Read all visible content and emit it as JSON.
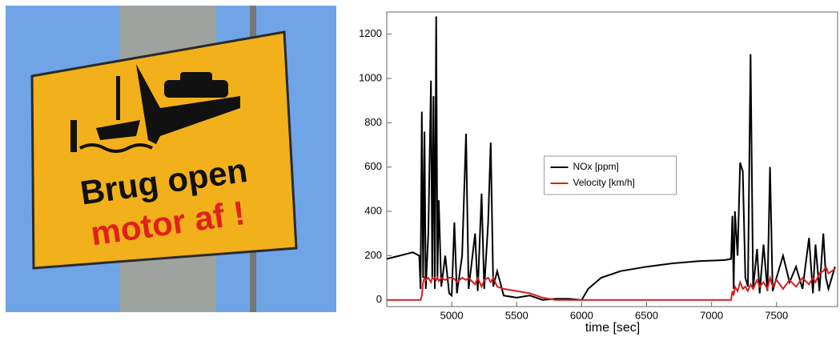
{
  "photo": {
    "sign_lines": [
      "Brug open",
      "motor af !"
    ]
  },
  "chart_data": {
    "type": "line",
    "xlabel": "time [sec]",
    "x": [
      4500,
      4600,
      4700,
      4750,
      4760,
      4770,
      4780,
      4790,
      4800,
      4820,
      4840,
      4850,
      4860,
      4870,
      4880,
      4890,
      4900,
      4920,
      4950,
      4980,
      5000,
      5020,
      5040,
      5080,
      5110,
      5130,
      5180,
      5200,
      5230,
      5250,
      5280,
      5300,
      5320,
      5350,
      5400,
      5500,
      5600,
      5700,
      5800,
      5900,
      6000,
      6050,
      6150,
      6300,
      6500,
      6700,
      6900,
      7100,
      7150,
      7160,
      7170,
      7180,
      7200,
      7220,
      7240,
      7260,
      7280,
      7300,
      7320,
      7350,
      7370,
      7400,
      7430,
      7450,
      7470,
      7500,
      7550,
      7600,
      7650,
      7700,
      7750,
      7780,
      7800,
      7830,
      7860,
      7880,
      7900,
      7950
    ],
    "series": [
      {
        "name": "NOx [ppm]",
        "color": "#000000",
        "values": [
          185,
          200,
          215,
          200,
          50,
          850,
          100,
          760,
          50,
          300,
          990,
          100,
          920,
          50,
          1280,
          100,
          450,
          60,
          200,
          30,
          20,
          350,
          30,
          200,
          750,
          50,
          300,
          40,
          480,
          50,
          350,
          710,
          60,
          130,
          20,
          10,
          20,
          0,
          5,
          5,
          0,
          50,
          100,
          130,
          150,
          165,
          175,
          180,
          185,
          380,
          50,
          400,
          200,
          620,
          580,
          100,
          60,
          1110,
          50,
          230,
          30,
          250,
          40,
          600,
          40,
          100,
          200,
          80,
          150,
          50,
          280,
          30,
          250,
          40,
          300,
          100,
          50,
          150
        ]
      },
      {
        "name": "Velocity [km/h]",
        "color": "#d62020",
        "values": [
          0,
          0,
          0,
          0,
          0,
          20,
          80,
          100,
          90,
          100,
          80,
          100,
          95,
          100,
          90,
          100,
          85,
          100,
          90,
          100,
          100,
          95,
          80,
          100,
          90,
          100,
          70,
          100,
          60,
          90,
          100,
          80,
          100,
          60,
          50,
          40,
          30,
          10,
          0,
          0,
          0,
          0,
          0,
          0,
          0,
          0,
          0,
          0,
          0,
          40,
          20,
          60,
          40,
          80,
          50,
          60,
          40,
          70,
          50,
          90,
          60,
          80,
          50,
          100,
          60,
          90,
          50,
          90,
          60,
          100,
          70,
          100,
          80,
          120,
          130,
          150,
          120,
          140
        ]
      }
    ],
    "xlim": [
      4500,
      7970
    ],
    "ylim": [
      -30,
      1300
    ],
    "xticks": [
      5000,
      5500,
      6000,
      6500,
      7000,
      7500
    ],
    "yticks": [
      0,
      200,
      400,
      600,
      800,
      1000,
      1200
    ],
    "legend": "center"
  }
}
